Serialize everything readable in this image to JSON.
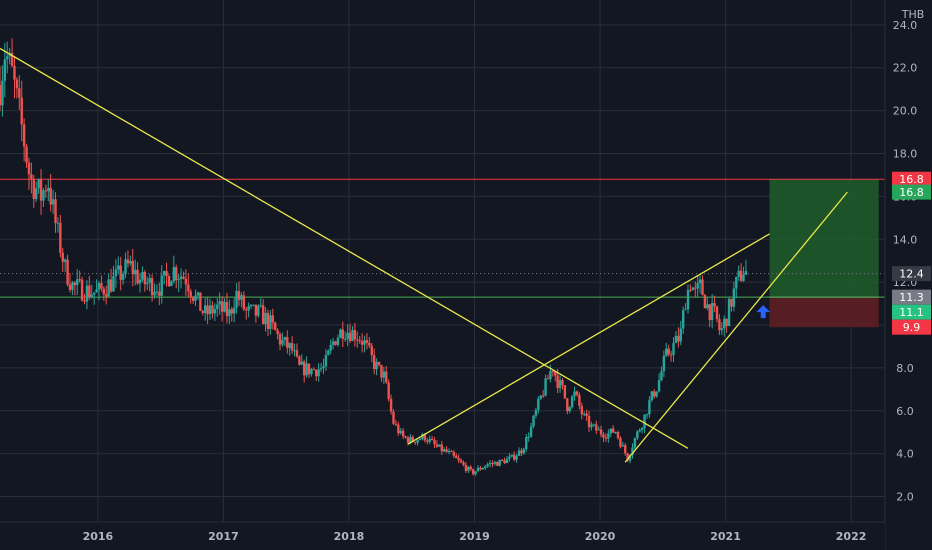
{
  "chart_data": {
    "type": "candlestick",
    "currency": "THB",
    "x_range": [
      2015.22,
      2022.27
    ],
    "ylim": [
      1.0,
      24.6
    ],
    "y_ticks": [
      2.0,
      4.0,
      6.0,
      8.0,
      10.0,
      12.0,
      14.0,
      16.0,
      18.0,
      20.0,
      22.0,
      24.0
    ],
    "x_ticks": [
      {
        "value": 2016,
        "label": "2016"
      },
      {
        "value": 2017,
        "label": "2017"
      },
      {
        "value": 2018,
        "label": "2018"
      },
      {
        "value": 2019,
        "label": "2019"
      },
      {
        "value": 2020,
        "label": "2020"
      },
      {
        "value": 2021,
        "label": "2021"
      },
      {
        "value": 2022,
        "label": "2022"
      }
    ],
    "grid": true,
    "colors": {
      "background": "#131722",
      "grid": "#2a2e39",
      "up": "#26a69a",
      "down": "#ef5350",
      "trendline": "#e8e84a",
      "resistance": "#f23645",
      "support": "#4caf50",
      "target_zone": "#1e5e2a",
      "stop_zone": "#5e1e24",
      "arrow": "#2962ff",
      "current_price": "#787b86"
    },
    "close_path": [
      [
        2015.22,
        21.2
      ],
      [
        2015.26,
        22.8
      ],
      [
        2015.32,
        21.6
      ],
      [
        2015.4,
        19.0
      ],
      [
        2015.46,
        16.8
      ],
      [
        2015.55,
        16.0
      ],
      [
        2015.6,
        16.8
      ],
      [
        2015.66,
        14.8
      ],
      [
        2015.74,
        12.6
      ],
      [
        2015.8,
        11.8
      ],
      [
        2015.9,
        11.6
      ],
      [
        2016.0,
        11.5
      ],
      [
        2016.15,
        12.2
      ],
      [
        2016.25,
        12.8
      ],
      [
        2016.35,
        12.0
      ],
      [
        2016.5,
        11.8
      ],
      [
        2016.6,
        12.6
      ],
      [
        2016.7,
        12.2
      ],
      [
        2016.78,
        11.2
      ],
      [
        2016.85,
        10.5
      ],
      [
        2016.95,
        10.8
      ],
      [
        2017.05,
        10.5
      ],
      [
        2017.1,
        11.5
      ],
      [
        2017.18,
        10.6
      ],
      [
        2017.3,
        10.5
      ],
      [
        2017.38,
        10.0
      ],
      [
        2017.45,
        9.3
      ],
      [
        2017.55,
        8.8
      ],
      [
        2017.6,
        8.0
      ],
      [
        2017.7,
        7.9
      ],
      [
        2017.8,
        8.0
      ],
      [
        2017.88,
        9.3
      ],
      [
        2017.95,
        9.8
      ],
      [
        2018.05,
        9.6
      ],
      [
        2018.12,
        9.2
      ],
      [
        2018.2,
        8.2
      ],
      [
        2018.28,
        7.6
      ],
      [
        2018.35,
        5.5
      ],
      [
        2018.42,
        4.8
      ],
      [
        2018.5,
        4.6
      ],
      [
        2018.6,
        4.8
      ],
      [
        2018.7,
        4.3
      ],
      [
        2018.8,
        4.0
      ],
      [
        2018.9,
        3.5
      ],
      [
        2018.98,
        3.1
      ],
      [
        2019.1,
        3.5
      ],
      [
        2019.2,
        3.6
      ],
      [
        2019.3,
        3.8
      ],
      [
        2019.38,
        4.2
      ],
      [
        2019.45,
        5.2
      ],
      [
        2019.52,
        6.5
      ],
      [
        2019.58,
        7.4
      ],
      [
        2019.62,
        8.1
      ],
      [
        2019.66,
        7.4
      ],
      [
        2019.7,
        7.0
      ],
      [
        2019.74,
        6.2
      ],
      [
        2019.8,
        6.8
      ],
      [
        2019.86,
        5.8
      ],
      [
        2019.92,
        5.3
      ],
      [
        2020.0,
        5.0
      ],
      [
        2020.06,
        4.9
      ],
      [
        2020.12,
        5.1
      ],
      [
        2020.18,
        4.3
      ],
      [
        2020.22,
        3.8
      ],
      [
        2020.27,
        4.6
      ],
      [
        2020.34,
        5.5
      ],
      [
        2020.4,
        6.5
      ],
      [
        2020.46,
        7.2
      ],
      [
        2020.52,
        8.5
      ],
      [
        2020.58,
        9.0
      ],
      [
        2020.64,
        9.5
      ],
      [
        2020.68,
        11.2
      ],
      [
        2020.72,
        12.0
      ],
      [
        2020.76,
        11.4
      ],
      [
        2020.8,
        11.8
      ],
      [
        2020.86,
        10.8
      ],
      [
        2020.92,
        10.4
      ],
      [
        2020.96,
        9.6
      ],
      [
        2021.02,
        10.6
      ],
      [
        2021.08,
        11.8
      ],
      [
        2021.14,
        12.6
      ],
      [
        2021.17,
        12.4
      ]
    ],
    "trendlines": [
      {
        "x1": 2015.22,
        "y1": 22.9,
        "x2": 2020.7,
        "y2": 4.25
      },
      {
        "x1": 2018.47,
        "y1": 4.45,
        "x2": 2021.35,
        "y2": 14.25
      },
      {
        "x1": 2020.2,
        "y1": 3.6,
        "x2": 2021.97,
        "y2": 16.2
      }
    ],
    "horizontal_levels": [
      {
        "value": 16.8,
        "role": "resistance"
      },
      {
        "value": 11.3,
        "role": "support"
      }
    ],
    "current_price_line": 12.4,
    "position_tool": {
      "x_start": 2021.35,
      "x_end": 2022.22,
      "entry": 11.3,
      "target": 16.8,
      "stop": 9.9
    },
    "arrow": {
      "x": 2021.3,
      "y": 10.6
    },
    "price_badges": [
      {
        "label": "16.8",
        "value": 16.8,
        "color": "#f23645"
      },
      {
        "label": "16.8",
        "value": 16.2,
        "color": "#26a65b"
      },
      {
        "label": "12.4",
        "value": 12.4,
        "color": "#363a45"
      },
      {
        "label": "11.3",
        "value": 11.3,
        "color": "#787b86"
      },
      {
        "label": "11.1",
        "value": 10.6,
        "color": "#26c281"
      },
      {
        "label": "9.9",
        "value": 9.9,
        "color": "#f23645"
      }
    ]
  }
}
